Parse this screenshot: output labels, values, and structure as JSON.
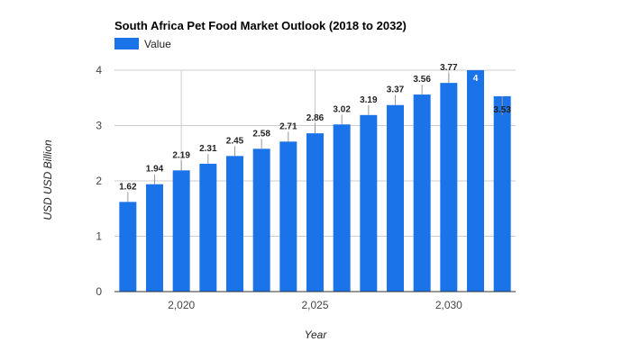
{
  "chart_data": {
    "type": "bar",
    "title": "South Africa Pet Food Market Outlook (2018 to 2032)",
    "xlabel": "Year",
    "ylabel": "USD USD Billion",
    "legend": {
      "position": "top-left",
      "entries": [
        "Value"
      ]
    },
    "x": [
      2018,
      2019,
      2020,
      2021,
      2022,
      2023,
      2024,
      2025,
      2026,
      2027,
      2028,
      2029,
      2030,
      2031,
      2032
    ],
    "x_ticks": [
      {
        "value": 2020,
        "label": "2,020"
      },
      {
        "value": 2025,
        "label": "2,025"
      },
      {
        "value": 2030,
        "label": "2,030"
      }
    ],
    "series": [
      {
        "name": "Value",
        "color": "#1a73e8",
        "values": [
          1.62,
          1.94,
          2.19,
          2.31,
          2.45,
          2.58,
          2.71,
          2.86,
          3.02,
          3.19,
          3.37,
          3.56,
          3.77,
          4,
          3.53
        ],
        "labels": [
          "1.62",
          "1.94",
          "2.19",
          "2.31",
          "2.45",
          "2.58",
          "2.71",
          "2.86",
          "3.02",
          "3.19",
          "3.37",
          "3.56",
          "3.77",
          "4",
          "3.53"
        ]
      }
    ],
    "ylim": [
      0,
      4
    ],
    "y_ticks": [
      0,
      1,
      2,
      3,
      4
    ],
    "grid": true
  }
}
